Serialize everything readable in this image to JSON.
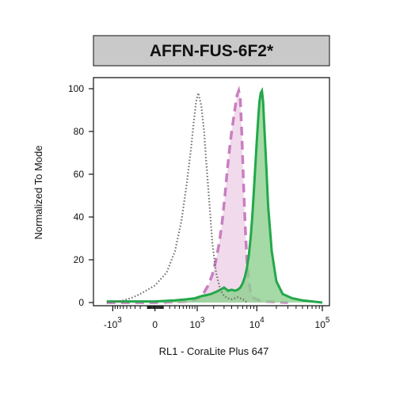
{
  "chart_data": {
    "type": "area",
    "title": "AFFN-FUS-6F2*",
    "xlabel": "RL1 - CoraLite Plus 647",
    "ylabel": "Normalized To Mode",
    "x_scale": "biexponential",
    "ylim": [
      0,
      100
    ],
    "y_ticks": [
      0,
      20,
      40,
      60,
      80,
      100
    ],
    "x_ticks": [
      {
        "value": -1000,
        "base": "-10",
        "exp": "3"
      },
      {
        "value": 0,
        "base": "0",
        "exp": ""
      },
      {
        "value": 1000,
        "base": "10",
        "exp": "3"
      },
      {
        "value": 10000,
        "base": "10",
        "exp": "4"
      },
      {
        "value": 100000,
        "base": "10",
        "exp": "5"
      }
    ],
    "series": [
      {
        "style": "dotted-outline",
        "color": "#6e6e6e",
        "x": [
          -1300,
          -900,
          -600,
          -400,
          -200,
          0,
          150,
          300,
          450,
          600,
          750,
          850,
          950,
          1050,
          1200,
          1350,
          1500,
          1700,
          1900,
          2200,
          2600,
          3000,
          3500,
          4000,
          4500,
          5000,
          5500,
          6000,
          6500,
          7000
        ],
        "y": [
          0,
          0.3,
          1,
          2,
          4,
          8,
          14,
          24,
          38,
          55,
          72,
          84,
          94,
          98,
          92,
          80,
          64,
          45,
          28,
          14,
          6,
          3,
          2,
          1.5,
          2,
          2.5,
          2,
          1.5,
          1,
          0
        ]
      },
      {
        "style": "dashed-filled",
        "color": "#c97fc0",
        "fill": "#efd6ea",
        "x": [
          -1300,
          0,
          600,
          1000,
          1300,
          1600,
          1900,
          2200,
          2500,
          2800,
          3100,
          3400,
          3700,
          4000,
          4300,
          4600,
          4900,
          5200,
          5500,
          5800,
          6200,
          6600,
          7000,
          7500,
          8000,
          9000,
          11000,
          14000,
          20000,
          30000
        ],
        "y": [
          0,
          0,
          0.5,
          1.5,
          4,
          8,
          13,
          20,
          28,
          38,
          50,
          62,
          72,
          80,
          86,
          92,
          97,
          99,
          95,
          80,
          55,
          35,
          20,
          10,
          5,
          2,
          1,
          0.5,
          0.3,
          0
        ]
      },
      {
        "style": "solid-filled",
        "color": "#22a84a",
        "fill": "#8fcf8f",
        "x": [
          -1300,
          -1000,
          -600,
          -300,
          0,
          300,
          600,
          900,
          1200,
          1500,
          1800,
          2200,
          2600,
          3000,
          3500,
          4000,
          4500,
          5000,
          5500,
          6000,
          6500,
          7000,
          7500,
          8000,
          8500,
          9000,
          9500,
          10000,
          10500,
          11000,
          11500,
          12000,
          12500,
          13000,
          14000,
          15000,
          17000,
          20000,
          25000,
          35000,
          50000,
          70000,
          100000
        ],
        "y": [
          0.5,
          0.5,
          0.5,
          0.5,
          0.5,
          1,
          1.5,
          2,
          3,
          3.5,
          4,
          5,
          6,
          7,
          5.5,
          6,
          5.5,
          6,
          7,
          9,
          12,
          16,
          22,
          30,
          40,
          52,
          64,
          76,
          86,
          94,
          98,
          99,
          94,
          84,
          64,
          45,
          24,
          10,
          4,
          2,
          1,
          0.5,
          0
        ]
      }
    ]
  }
}
